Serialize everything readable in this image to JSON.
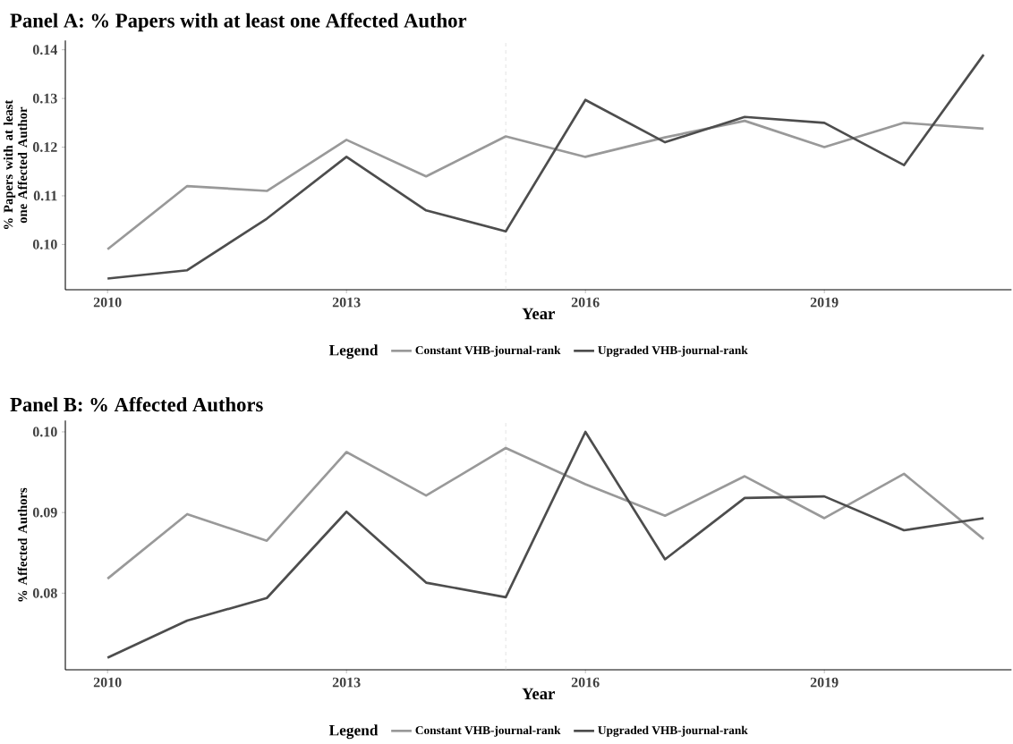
{
  "chart_data": [
    {
      "type": "line",
      "title": "Panel A: % Papers with at least one Affected Author",
      "xlabel": "Year",
      "ylabel": "% Papers with at least one Affected Author",
      "legend_title": "Legend",
      "legend": "bottom",
      "grid": false,
      "line_style": "solid",
      "x": [
        2010,
        2011,
        2012,
        2013,
        2014,
        2015,
        2016,
        2017,
        2018,
        2019,
        2020,
        2021
      ],
      "series": [
        {
          "name": "Constant VHB-journal-rank",
          "color": "#999999",
          "values": [
            0.099,
            0.112,
            0.111,
            0.1215,
            0.114,
            0.1222,
            0.118,
            0.122,
            0.1254,
            0.12,
            0.125,
            0.1238
          ]
        },
        {
          "name": "Upgraded VHB-journal-rank",
          "color": "#4d4d4d",
          "values": [
            0.093,
            0.0947,
            0.1053,
            0.118,
            0.107,
            0.1027,
            0.1297,
            0.121,
            0.1262,
            0.125,
            0.1163,
            0.139
          ]
        }
      ],
      "xlim": [
        2009.47,
        2021.35
      ],
      "ylim": [
        0.0907,
        0.1419
      ],
      "xticks": [
        2010,
        2013,
        2016,
        2019
      ],
      "yticks": [
        {
          "value": 0.1,
          "label": "0.10"
        },
        {
          "value": 0.11,
          "label": "0.11"
        },
        {
          "value": 0.12,
          "label": "0.12"
        },
        {
          "value": 0.13,
          "label": "0.13"
        },
        {
          "value": 0.14,
          "label": "0.14"
        }
      ],
      "ref_lines": [
        {
          "axis": "x",
          "value": 2015,
          "color": "#cccccc",
          "line_style": "dashed"
        }
      ]
    },
    {
      "type": "line",
      "title": "Panel B: % Affected Authors",
      "xlabel": "Year",
      "ylabel": "% Affected Authors",
      "legend_title": "Legend",
      "legend": "bottom",
      "grid": false,
      "line_style": "solid",
      "x": [
        2010,
        2011,
        2012,
        2013,
        2014,
        2015,
        2016,
        2017,
        2018,
        2019,
        2020,
        2021
      ],
      "series": [
        {
          "name": "Constant VHB-journal-rank",
          "color": "#999999",
          "values": [
            0.0818,
            0.0898,
            0.0865,
            0.0975,
            0.0921,
            0.098,
            0.0935,
            0.0896,
            0.0945,
            0.0893,
            0.0948,
            0.0867
          ]
        },
        {
          "name": "Upgraded VHB-journal-rank",
          "color": "#4d4d4d",
          "values": [
            0.072,
            0.0766,
            0.0794,
            0.0901,
            0.0813,
            0.0795,
            0.1,
            0.0842,
            0.0918,
            0.092,
            0.0878,
            0.0893
          ]
        }
      ],
      "xlim": [
        2009.47,
        2021.35
      ],
      "ylim": [
        0.0705,
        0.1014
      ],
      "xticks": [
        2010,
        2013,
        2016,
        2019
      ],
      "yticks": [
        {
          "value": 0.08,
          "label": "0.08"
        },
        {
          "value": 0.09,
          "label": "0.09"
        },
        {
          "value": 0.1,
          "label": "0.10"
        }
      ],
      "ref_lines": [
        {
          "axis": "x",
          "value": 2015,
          "color": "#cccccc",
          "line_style": "dashed"
        }
      ]
    }
  ]
}
